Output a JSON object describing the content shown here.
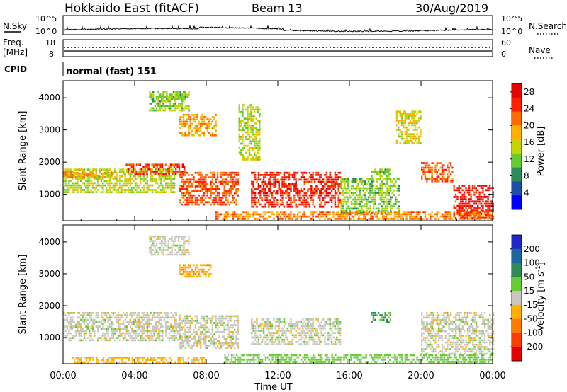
{
  "header": {
    "title": "Hokkaido East (fitACF)",
    "beam": "Beam 13",
    "date": "30/Aug/2019"
  },
  "meta_panel": {
    "nsky_label": "N.Sky",
    "nsky_ticks": [
      "10^5",
      "10^0"
    ],
    "nsearch_label": "N.Search",
    "freq_label_line1": "Freq.",
    "freq_label_line2": "[MHz]",
    "freq_ticks": [
      "18",
      "8"
    ],
    "nave_label": "Nave",
    "nave_ticks": [
      "60",
      "0"
    ],
    "cpid_label": "CPID",
    "cpid_value": "normal (fast) 151"
  },
  "chart_data": [
    {
      "type": "heatmap",
      "xlabel": "Time UT",
      "ylabel": "Slant Range [km]",
      "x_ticks": [
        "00:00",
        "04:00",
        "08:00",
        "12:00",
        "16:00",
        "20:00",
        "00:00"
      ],
      "xlim_hours": [
        0,
        24
      ],
      "y_ticks": [
        1000,
        2000,
        3000,
        4000
      ],
      "ylim_km": [
        180,
        4530
      ],
      "colorbar_label": "Power [dB]",
      "colorbar_ticks": [
        4,
        8,
        12,
        16,
        20,
        24,
        28
      ],
      "colorbar_range": [
        0,
        30
      ],
      "colors": [
        "#0000ff",
        "#1e4ea8",
        "#2e8b57",
        "#66cc33",
        "#c8d400",
        "#ffb000",
        "#ff6a00",
        "#ff2000",
        "#e60000"
      ],
      "regions": [
        {
          "t0": 0.0,
          "t1": 6.2,
          "r0": 1050,
          "r1": 1800,
          "value": 14
        },
        {
          "t0": 0.0,
          "t1": 3.0,
          "r0": 1500,
          "r1": 1700,
          "value": 20
        },
        {
          "t0": 3.5,
          "t1": 6.8,
          "r0": 1600,
          "r1": 1950,
          "value": 26
        },
        {
          "t0": 6.5,
          "t1": 9.8,
          "r0": 700,
          "r1": 1700,
          "value": 24
        },
        {
          "t0": 4.8,
          "t1": 7.0,
          "r0": 3600,
          "r1": 4200,
          "value": 12
        },
        {
          "t0": 6.5,
          "t1": 8.5,
          "r0": 2800,
          "r1": 3500,
          "value": 20
        },
        {
          "t0": 9.8,
          "t1": 11.0,
          "r0": 2100,
          "r1": 3800,
          "value": 14
        },
        {
          "t0": 10.5,
          "t1": 15.5,
          "r0": 600,
          "r1": 1700,
          "value": 27
        },
        {
          "t0": 15.5,
          "t1": 18.8,
          "r0": 400,
          "r1": 1500,
          "value": 12
        },
        {
          "t0": 17.2,
          "t1": 18.3,
          "r0": 1450,
          "r1": 1800,
          "value": 12
        },
        {
          "t0": 18.6,
          "t1": 20.0,
          "r0": 2600,
          "r1": 3600,
          "value": 16
        },
        {
          "t0": 20.0,
          "t1": 21.8,
          "r0": 1400,
          "r1": 2000,
          "value": 24
        },
        {
          "t0": 21.8,
          "t1": 24.0,
          "r0": 300,
          "r1": 1300,
          "value": 28
        },
        {
          "t0": 8.5,
          "t1": 24.0,
          "r0": 200,
          "r1": 480,
          "value": 22
        }
      ]
    },
    {
      "type": "heatmap",
      "xlabel": "Time UT",
      "ylabel": "Slant Range [km]",
      "x_ticks": [
        "00:00",
        "04:00",
        "08:00",
        "12:00",
        "16:00",
        "20:00",
        "00:00"
      ],
      "xlim_hours": [
        0,
        24
      ],
      "y_ticks": [
        1000,
        2000,
        3000,
        4000
      ],
      "ylim_km": [
        180,
        4530
      ],
      "colorbar_label": "Velocity [m s^-1]",
      "colorbar_ticks": [
        "200",
        "100",
        "50",
        "15",
        "-15",
        "-50",
        "-100",
        "-200"
      ],
      "colors": [
        "#1e28c8",
        "#1e64a0",
        "#2e8b57",
        "#66cc33",
        "#c8c8c0",
        "#ffb000",
        "#ff7a00",
        "#ff3c00",
        "#e60000"
      ],
      "regions": [
        {
          "t0": 0.0,
          "t1": 6.5,
          "r0": 900,
          "r1": 1800,
          "value": 0
        },
        {
          "t0": 6.5,
          "t1": 9.8,
          "r0": 700,
          "r1": 1700,
          "value": 0
        },
        {
          "t0": 6.5,
          "t1": 8.3,
          "r0": 2900,
          "r1": 3300,
          "value": -40
        },
        {
          "t0": 4.8,
          "t1": 7.0,
          "r0": 3600,
          "r1": 4200,
          "value": 0
        },
        {
          "t0": 10.5,
          "t1": 15.5,
          "r0": 800,
          "r1": 1600,
          "value": 0
        },
        {
          "t0": 17.2,
          "t1": 18.3,
          "r0": 1450,
          "r1": 1800,
          "value": 60
        },
        {
          "t0": 20.0,
          "t1": 24.0,
          "r0": 500,
          "r1": 1800,
          "value": 0
        },
        {
          "t0": 9.0,
          "t1": 24.0,
          "r0": 200,
          "r1": 480,
          "value": 30
        },
        {
          "t0": 0.5,
          "t1": 8.0,
          "r0": 200,
          "r1": 400,
          "value": -30
        }
      ]
    }
  ]
}
